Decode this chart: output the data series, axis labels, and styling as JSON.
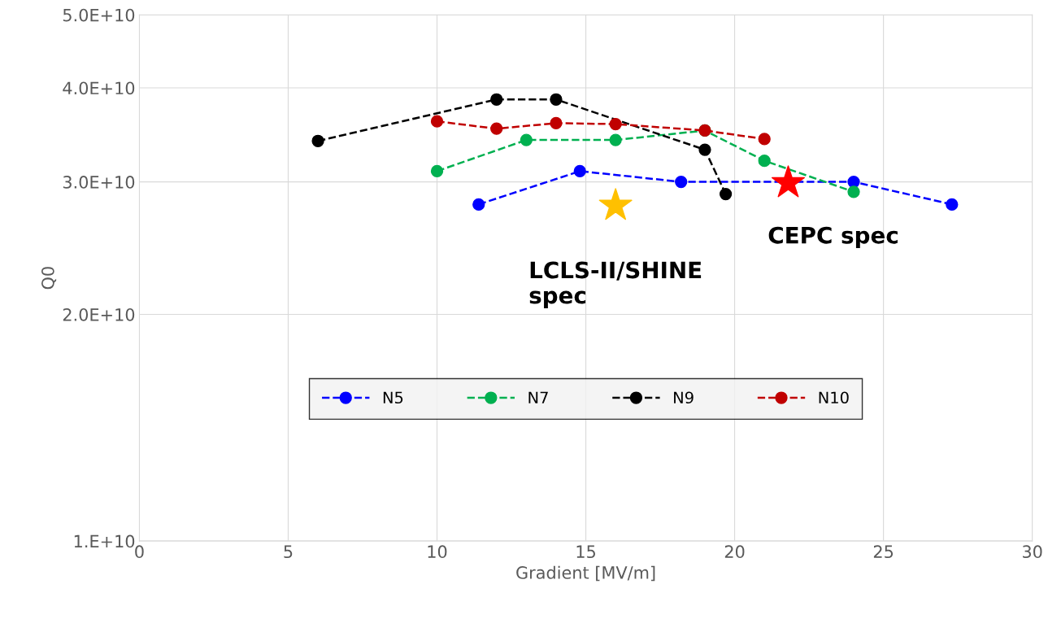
{
  "chart_data": {
    "type": "line",
    "xlabel": "Gradient [MV/m]",
    "ylabel": "Q0",
    "log": "y",
    "xlim": [
      0,
      30
    ],
    "xticks": [
      0,
      5,
      10,
      15,
      20,
      25,
      30
    ],
    "ylim": [
      10000000000.0,
      50000000000.0
    ],
    "yticks": [
      {
        "value": 10000000000.0,
        "label": "1.E+10"
      },
      {
        "value": 20000000000.0,
        "label": "2.0E+10"
      },
      {
        "value": 30000000000.0,
        "label": "3.0E+10"
      },
      {
        "value": 40000000000.0,
        "label": "4.0E+10"
      },
      {
        "value": 50000000000.0,
        "label": "5.0E+10"
      }
    ],
    "grid": true,
    "legend": "center",
    "marker": "circle",
    "line_style": "dashed",
    "series": [
      {
        "name": "N5",
        "color": "#0000ff",
        "x": [
          11.4,
          14.8,
          18.2,
          24,
          27.3
        ],
        "values": [
          28000000000.0,
          31000000000.0,
          30000000000.0,
          30000000000.0,
          28000000000.0
        ]
      },
      {
        "name": "N7",
        "color": "#00b050",
        "x": [
          10,
          13,
          16,
          19,
          21,
          24
        ],
        "values": [
          31000000000.0,
          34100000000.0,
          34100000000.0,
          35100000000.0,
          32000000000.0,
          29100000000.0
        ]
      },
      {
        "name": "N9",
        "color": "#000000",
        "x": [
          6,
          12,
          14,
          19,
          19.7
        ],
        "values": [
          34000000000.0,
          38600000000.0,
          38600000000.0,
          33100000000.0,
          28900000000.0
        ]
      },
      {
        "name": "N10",
        "color": "#c00000",
        "x": [
          10,
          12,
          14,
          16,
          19,
          21
        ],
        "values": [
          36100000000.0,
          35300000000.0,
          35900000000.0,
          35800000000.0,
          35100000000.0,
          34200000000.0
        ]
      },
      {
        "type": "scatter",
        "marker": "star",
        "color": "#ffc000",
        "x": [
          16
        ],
        "values": [
          27900000000.0
        ]
      },
      {
        "type": "scatter",
        "marker": "star",
        "color": "#ff0000",
        "x": [
          21.8
        ],
        "values": [
          29900000000.0
        ]
      }
    ],
    "annotations": [
      {
        "text": "LCLS-II/SHINE\nspec",
        "x": 16,
        "y": 27900000000.0
      },
      {
        "text": "CEPC spec",
        "x": 21.8,
        "y": 29900000000.0
      }
    ]
  }
}
